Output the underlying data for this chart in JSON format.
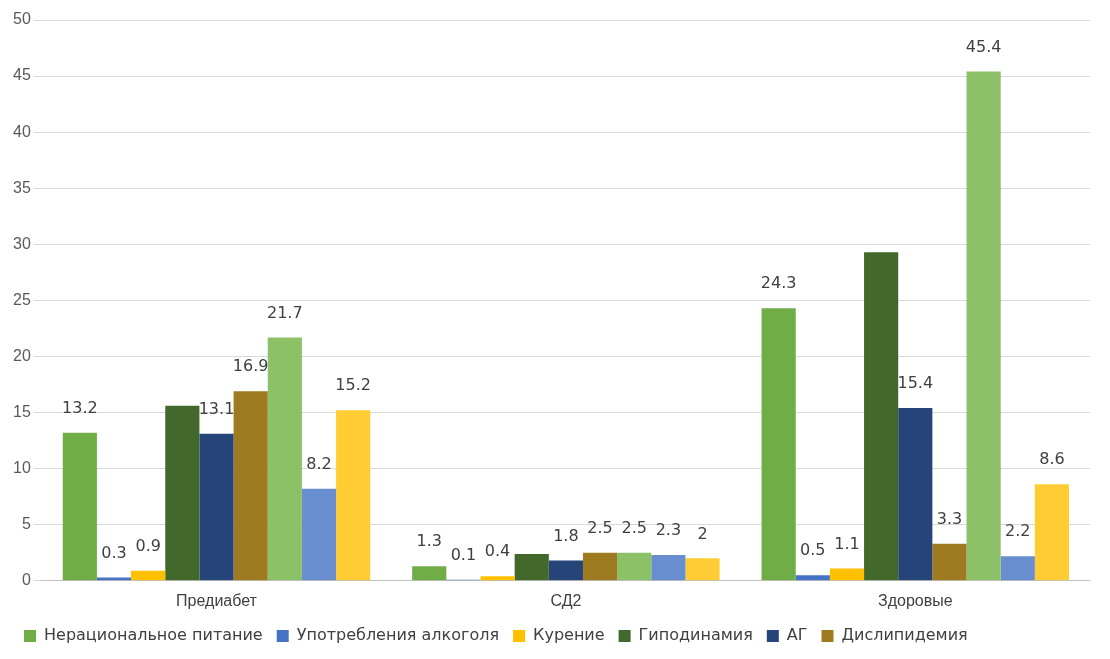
{
  "chart_data": {
    "type": "bar",
    "categories": [
      "Предиабет",
      "СД2",
      "Здоровые"
    ],
    "series": [
      {
        "name": "Нерациональное питание",
        "color": "#70ad47",
        "values": [
          13.2,
          1.3,
          24.3
        ],
        "value_labels": [
          "13.2",
          "1.3",
          "24.3"
        ]
      },
      {
        "name": "Употребления алкоголя",
        "color": "#4472c4",
        "values": [
          0.3,
          0.1,
          0.5
        ],
        "value_labels": [
          "0.3",
          "0.1",
          "0.5"
        ]
      },
      {
        "name": "Курение",
        "color": "#ffc000",
        "values": [
          0.9,
          0.4,
          1.1
        ],
        "value_labels": [
          "0.9",
          "0.4",
          "1.1"
        ]
      },
      {
        "name": "Гиподинамия",
        "color": "#43682b",
        "values": [
          15.6,
          2.4,
          29.3
        ],
        "value_labels": [
          null,
          null,
          null
        ]
      },
      {
        "name": "АГ",
        "color": "#264478",
        "values": [
          13.1,
          1.8,
          15.4
        ],
        "value_labels": [
          "13.1",
          "1.8",
          "15.4"
        ]
      },
      {
        "name": "Дислипидемия",
        "color": "#9e7b21",
        "values": [
          16.9,
          2.5,
          3.3
        ],
        "value_labels": [
          "16.9",
          "2.5",
          "3.3"
        ]
      },
      {
        "color": "#8cc168",
        "values": [
          21.7,
          2.5,
          45.4
        ],
        "value_labels": [
          "21.7",
          "2.5",
          "45.4"
        ]
      },
      {
        "color": "#698ed0",
        "values": [
          8.2,
          2.3,
          2.2
        ],
        "value_labels": [
          "8.2",
          "2.3",
          "2.2"
        ]
      },
      {
        "color": "#ffcd33",
        "values": [
          15.2,
          2,
          8.6
        ],
        "value_labels": [
          "15.2",
          "2",
          "8.6"
        ]
      }
    ],
    "ylim": [
      0,
      50
    ],
    "yticks": [
      0,
      5,
      10,
      15,
      20,
      25,
      30,
      35,
      40,
      45,
      50
    ],
    "grid": "y",
    "legend": "bottom"
  }
}
